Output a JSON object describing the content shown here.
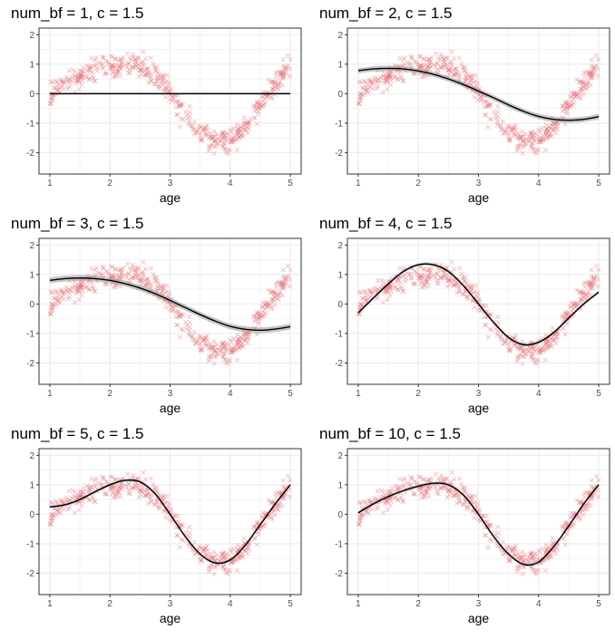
{
  "chart_data": [
    {
      "type": "line",
      "title": "num_bf = 1, c = 1.5",
      "xlabel": "age",
      "ylabel": "",
      "xlim": [
        1,
        5
      ],
      "ylim": [
        -2.5,
        2
      ],
      "x_ticks": [
        "1",
        "2",
        "3",
        "4",
        "5"
      ],
      "y_ticks": [
        "-2",
        "-1",
        "0",
        "1",
        "2"
      ],
      "grid": true,
      "series": [
        {
          "x": [
            1,
            1.5,
            2,
            2.5,
            3,
            3.5,
            4,
            4.5,
            5
          ],
          "y": [
            0,
            0,
            0,
            0,
            0,
            0,
            0,
            0,
            0
          ]
        }
      ],
      "ribbon_halfwidth": 0.02
    },
    {
      "type": "line",
      "title": "num_bf = 2, c = 1.5",
      "xlabel": "age",
      "ylabel": "",
      "xlim": [
        1,
        5
      ],
      "ylim": [
        -2.5,
        2
      ],
      "x_ticks": [
        "1",
        "2",
        "3",
        "4",
        "5"
      ],
      "y_ticks": [
        "-2",
        "-1",
        "0",
        "1",
        "2"
      ],
      "grid": true,
      "series": [
        {
          "x": [
            1,
            1.25,
            1.5,
            1.75,
            2,
            2.25,
            2.5,
            2.75,
            3,
            3.25,
            3.5,
            3.75,
            4,
            4.25,
            4.5,
            4.75,
            5
          ],
          "y": [
            0.78,
            0.84,
            0.86,
            0.84,
            0.77,
            0.66,
            0.5,
            0.31,
            0.09,
            -0.14,
            -0.38,
            -0.6,
            -0.77,
            -0.87,
            -0.9,
            -0.87,
            -0.78
          ]
        }
      ],
      "ribbon_halfwidth": 0.09
    },
    {
      "type": "line",
      "title": "num_bf = 3, c = 1.5",
      "xlabel": "age",
      "ylabel": "",
      "xlim": [
        1,
        5
      ],
      "ylim": [
        -2.5,
        2
      ],
      "x_ticks": [
        "1",
        "2",
        "3",
        "4",
        "5"
      ],
      "y_ticks": [
        "-2",
        "-1",
        "0",
        "1",
        "2"
      ],
      "grid": true,
      "series": [
        {
          "x": [
            1,
            1.25,
            1.5,
            1.75,
            2,
            2.25,
            2.5,
            2.75,
            3,
            3.25,
            3.5,
            3.75,
            4,
            4.25,
            4.5,
            4.75,
            5
          ],
          "y": [
            0.8,
            0.86,
            0.88,
            0.86,
            0.8,
            0.69,
            0.54,
            0.35,
            0.12,
            -0.12,
            -0.36,
            -0.58,
            -0.76,
            -0.86,
            -0.89,
            -0.85,
            -0.77
          ]
        }
      ],
      "ribbon_halfwidth": 0.1
    },
    {
      "type": "line",
      "title": "num_bf = 4, c = 1.5",
      "xlabel": "age",
      "ylabel": "",
      "xlim": [
        1,
        5
      ],
      "ylim": [
        -2.5,
        2
      ],
      "x_ticks": [
        "1",
        "2",
        "3",
        "4",
        "5"
      ],
      "y_ticks": [
        "-2",
        "-1",
        "0",
        "1",
        "2"
      ],
      "grid": true,
      "series": [
        {
          "x": [
            1,
            1.25,
            1.5,
            1.75,
            2,
            2.25,
            2.5,
            2.75,
            3,
            3.25,
            3.5,
            3.75,
            4,
            4.25,
            4.5,
            4.75,
            5
          ],
          "y": [
            -0.3,
            0.2,
            0.68,
            1.1,
            1.33,
            1.33,
            1.1,
            0.62,
            0.0,
            -0.62,
            -1.14,
            -1.38,
            -1.3,
            -0.97,
            -0.48,
            0.0,
            0.4
          ]
        }
      ],
      "ribbon_halfwidth": 0.05
    },
    {
      "type": "line",
      "title": "num_bf = 5, c = 1.5",
      "xlabel": "age",
      "ylabel": "",
      "xlim": [
        1,
        5
      ],
      "ylim": [
        -2.5,
        2
      ],
      "x_ticks": [
        "1",
        "2",
        "3",
        "4",
        "5"
      ],
      "y_ticks": [
        "-2",
        "-1",
        "0",
        "1",
        "2"
      ],
      "grid": true,
      "series": [
        {
          "x": [
            1,
            1.25,
            1.5,
            1.75,
            2,
            2.25,
            2.5,
            2.75,
            3,
            3.25,
            3.5,
            3.75,
            4,
            4.25,
            4.5,
            4.75,
            5
          ],
          "y": [
            0.25,
            0.32,
            0.5,
            0.76,
            1.0,
            1.15,
            1.1,
            0.7,
            0.0,
            -0.75,
            -1.35,
            -1.65,
            -1.55,
            -1.05,
            -0.35,
            0.35,
            1.0
          ]
        }
      ],
      "ribbon_halfwidth": 0.05
    },
    {
      "type": "line",
      "title": "num_bf = 10, c = 1.5",
      "xlabel": "age",
      "ylabel": "",
      "xlim": [
        1,
        5
      ],
      "ylim": [
        -2.5,
        2
      ],
      "x_ticks": [
        "1",
        "2",
        "3",
        "4",
        "5"
      ],
      "y_ticks": [
        "-2",
        "-1",
        "0",
        "1",
        "2"
      ],
      "grid": true,
      "series": [
        {
          "x": [
            1,
            1.25,
            1.5,
            1.75,
            2,
            2.25,
            2.5,
            2.75,
            3,
            3.25,
            3.5,
            3.75,
            4,
            4.25,
            4.5,
            4.75,
            5
          ],
          "y": [
            0.05,
            0.35,
            0.6,
            0.8,
            0.95,
            1.05,
            1.0,
            0.65,
            0.0,
            -0.75,
            -1.35,
            -1.7,
            -1.62,
            -1.1,
            -0.4,
            0.35,
            1.0
          ]
        }
      ],
      "ribbon_halfwidth": 0.05
    }
  ],
  "scatter": {
    "x_range": [
      1,
      5
    ],
    "count": 520,
    "y_noise": 0.3,
    "truth_y": [
      0.0,
      0.35,
      0.6,
      0.8,
      0.95,
      1.05,
      1.0,
      0.65,
      0.0,
      -0.75,
      -1.35,
      -1.7,
      -1.62,
      -1.1,
      -0.4,
      0.35,
      1.0
    ],
    "truth_x": [
      1,
      1.25,
      1.5,
      1.75,
      2,
      2.25,
      2.5,
      2.75,
      3,
      3.25,
      3.5,
      3.75,
      4,
      4.25,
      4.5,
      4.75,
      5
    ]
  },
  "colors": {
    "points": "#e8737a",
    "line": "#000000",
    "ribbon": "#999999",
    "grid": "#ebebeb",
    "frame": "#333333"
  }
}
